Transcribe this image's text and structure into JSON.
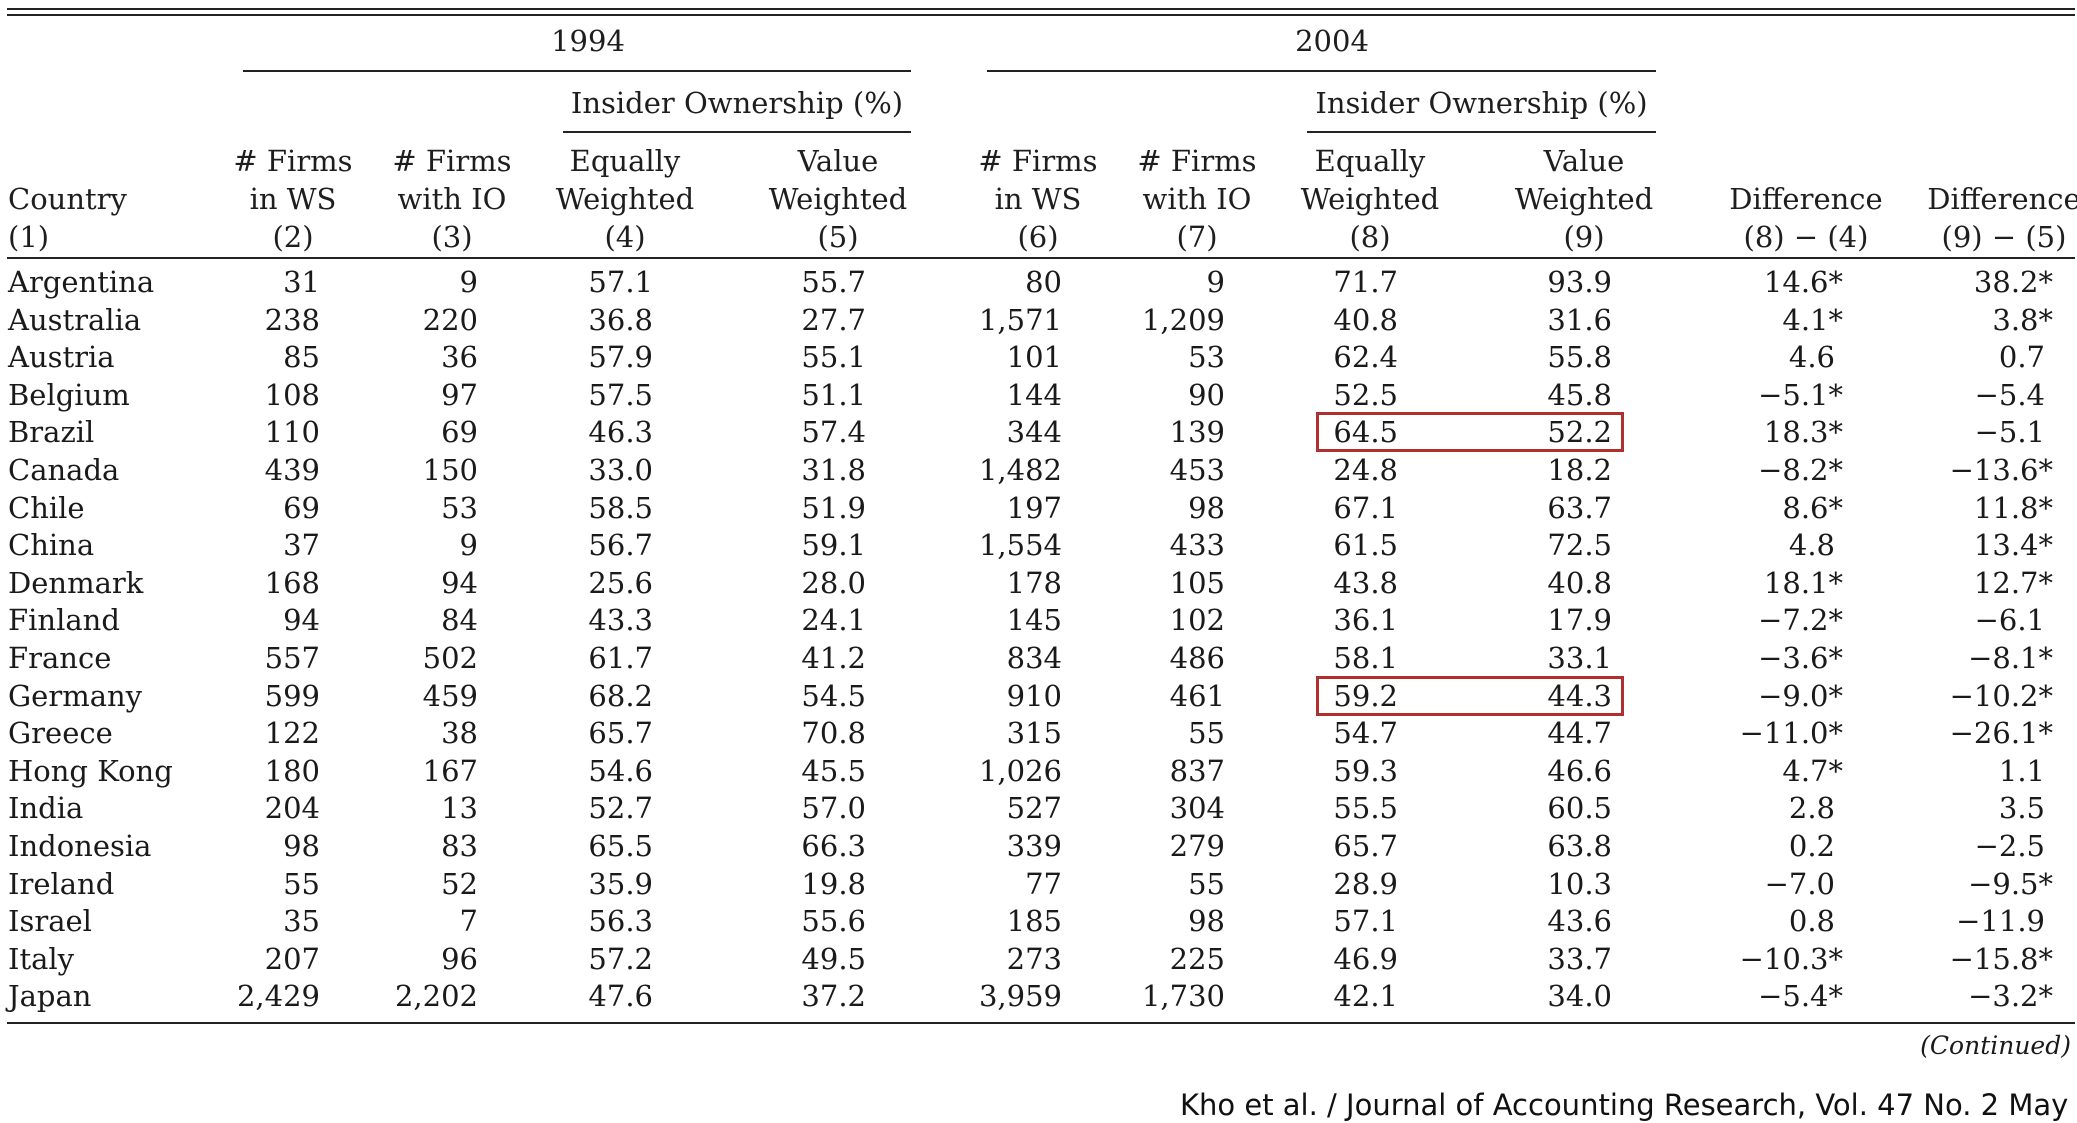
{
  "table": {
    "periods": [
      "1994",
      "2004"
    ],
    "group_label": "Insider Ownership (%)",
    "columns": [
      {
        "l1": "",
        "l2": "Country",
        "l3": "(1)"
      },
      {
        "l1": "# Firms",
        "l2": "in WS",
        "l3": "(2)"
      },
      {
        "l1": "# Firms",
        "l2": "with IO",
        "l3": "(3)"
      },
      {
        "l1": "Equally",
        "l2": "Weighted",
        "l3": "(4)"
      },
      {
        "l1": "Value",
        "l2": "Weighted",
        "l3": "(5)"
      },
      {
        "l1": "# Firms",
        "l2": "in WS",
        "l3": "(6)"
      },
      {
        "l1": "# Firms",
        "l2": "with IO",
        "l3": "(7)"
      },
      {
        "l1": "Equally",
        "l2": "Weighted",
        "l3": "(8)"
      },
      {
        "l1": "Value",
        "l2": "Weighted",
        "l3": "(9)"
      },
      {
        "l1": "",
        "l2": "Difference",
        "l3": "(8) − (4)"
      },
      {
        "l1": "",
        "l2": "Difference",
        "l3": "(9) − (5)"
      }
    ],
    "rows": [
      [
        "Argentina",
        "31",
        "9",
        "57.1",
        "55.7",
        "80",
        "9",
        "71.7",
        "93.9",
        "14.6*",
        "38.2*"
      ],
      [
        "Australia",
        "238",
        "220",
        "36.8",
        "27.7",
        "1,571",
        "1,209",
        "40.8",
        "31.6",
        "4.1*",
        "3.8*"
      ],
      [
        "Austria",
        "85",
        "36",
        "57.9",
        "55.1",
        "101",
        "53",
        "62.4",
        "55.8",
        "4.6",
        "0.7"
      ],
      [
        "Belgium",
        "108",
        "97",
        "57.5",
        "51.1",
        "144",
        "90",
        "52.5",
        "45.8",
        "−5.1*",
        "−5.4"
      ],
      [
        "Brazil",
        "110",
        "69",
        "46.3",
        "57.4",
        "344",
        "139",
        "64.5",
        "52.2",
        "18.3*",
        "−5.1"
      ],
      [
        "Canada",
        "439",
        "150",
        "33.0",
        "31.8",
        "1,482",
        "453",
        "24.8",
        "18.2",
        "−8.2*",
        "−13.6*"
      ],
      [
        "Chile",
        "69",
        "53",
        "58.5",
        "51.9",
        "197",
        "98",
        "67.1",
        "63.7",
        "8.6*",
        "11.8*"
      ],
      [
        "China",
        "37",
        "9",
        "56.7",
        "59.1",
        "1,554",
        "433",
        "61.5",
        "72.5",
        "4.8",
        "13.4*"
      ],
      [
        "Denmark",
        "168",
        "94",
        "25.6",
        "28.0",
        "178",
        "105",
        "43.8",
        "40.8",
        "18.1*",
        "12.7*"
      ],
      [
        "Finland",
        "94",
        "84",
        "43.3",
        "24.1",
        "145",
        "102",
        "36.1",
        "17.9",
        "−7.2*",
        "−6.1"
      ],
      [
        "France",
        "557",
        "502",
        "61.7",
        "41.2",
        "834",
        "486",
        "58.1",
        "33.1",
        "−3.6*",
        "−8.1*"
      ],
      [
        "Germany",
        "599",
        "459",
        "68.2",
        "54.5",
        "910",
        "461",
        "59.2",
        "44.3",
        "−9.0*",
        "−10.2*"
      ],
      [
        "Greece",
        "122",
        "38",
        "65.7",
        "70.8",
        "315",
        "55",
        "54.7",
        "44.7",
        "−11.0*",
        "−26.1*"
      ],
      [
        "Hong Kong",
        "180",
        "167",
        "54.6",
        "45.5",
        "1,026",
        "837",
        "59.3",
        "46.6",
        "4.7*",
        "1.1"
      ],
      [
        "India",
        "204",
        "13",
        "52.7",
        "57.0",
        "527",
        "304",
        "55.5",
        "60.5",
        "2.8",
        "3.5"
      ],
      [
        "Indonesia",
        "98",
        "83",
        "65.5",
        "66.3",
        "339",
        "279",
        "65.7",
        "63.8",
        "0.2",
        "−2.5"
      ],
      [
        "Ireland",
        "55",
        "52",
        "35.9",
        "19.8",
        "77",
        "55",
        "28.9",
        "10.3",
        "−7.0",
        "−9.5*"
      ],
      [
        "Israel",
        "35",
        "7",
        "56.3",
        "55.6",
        "185",
        "98",
        "57.1",
        "43.6",
        "0.8",
        "−11.9"
      ],
      [
        "Italy",
        "207",
        "96",
        "57.2",
        "49.5",
        "273",
        "225",
        "46.9",
        "33.7",
        "−10.3*",
        "−15.8*"
      ],
      [
        "Japan",
        "2,429",
        "2,202",
        "47.6",
        "37.2",
        "3,959",
        "1,730",
        "42.1",
        "34.0",
        "−5.4*",
        "−3.2*"
      ]
    ],
    "highlighted_rows": [
      "Brazil",
      "Germany"
    ],
    "highlight_color": "#b03030",
    "continued": "(Continued)"
  },
  "source_caption": "Kho et al. / Journal of Accounting Research, Vol. 47 No. 2 May 2009"
}
